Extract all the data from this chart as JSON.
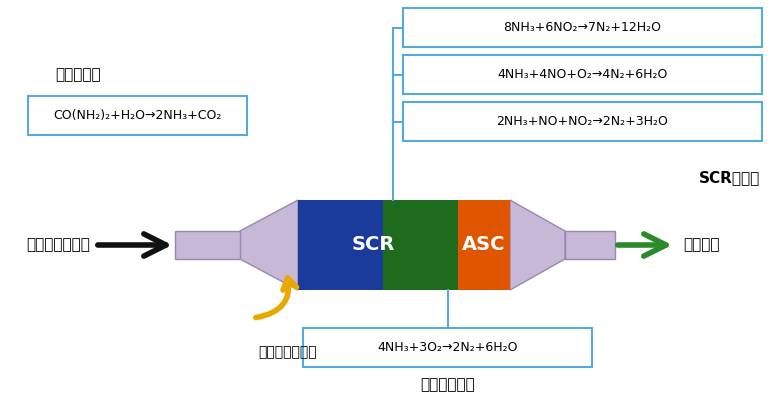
{
  "bg_color": "#ffffff",
  "label_shujie": "水解还原剂",
  "label_fajianji": "发动机排放废气",
  "label_penfei": "喷射尿素水溶液",
  "label_paifang": "排放达标",
  "label_scr_catalyst": "SCR催化剂",
  "label_dan": "氨氧化催化剂",
  "eq_hydrolysis": "CO(NH₂)₂+H₂O→2NH₃+CO₂",
  "eq_scr1": "8NH₃+6NO₂→7N₂+12H₂O",
  "eq_scr2": "4NH₃+4NO+O₂→4N₂+6H₂O",
  "eq_scr3": "2NH₃+NO+NO₂→2N₂+3H₂O",
  "eq_asc": "4NH₃+3O₂→2N₂+6H₂O",
  "scr_label": "SCR",
  "asc_label": "ASC",
  "scr_color": "#1a3a9c",
  "asc_color": "#e05500",
  "green_color": "#1e6b1e",
  "catalyst_body_color": "#c8b8d8",
  "catalyst_edge_color": "#9988aa",
  "arrow_in_color": "#111111",
  "arrow_out_color": "#2a8a2a",
  "urea_arrow_color": "#e8a800",
  "box_border_color": "#55aadd",
  "text_color_black": "#000000",
  "text_color_white": "#ffffff",
  "line_color": "#55aadd"
}
